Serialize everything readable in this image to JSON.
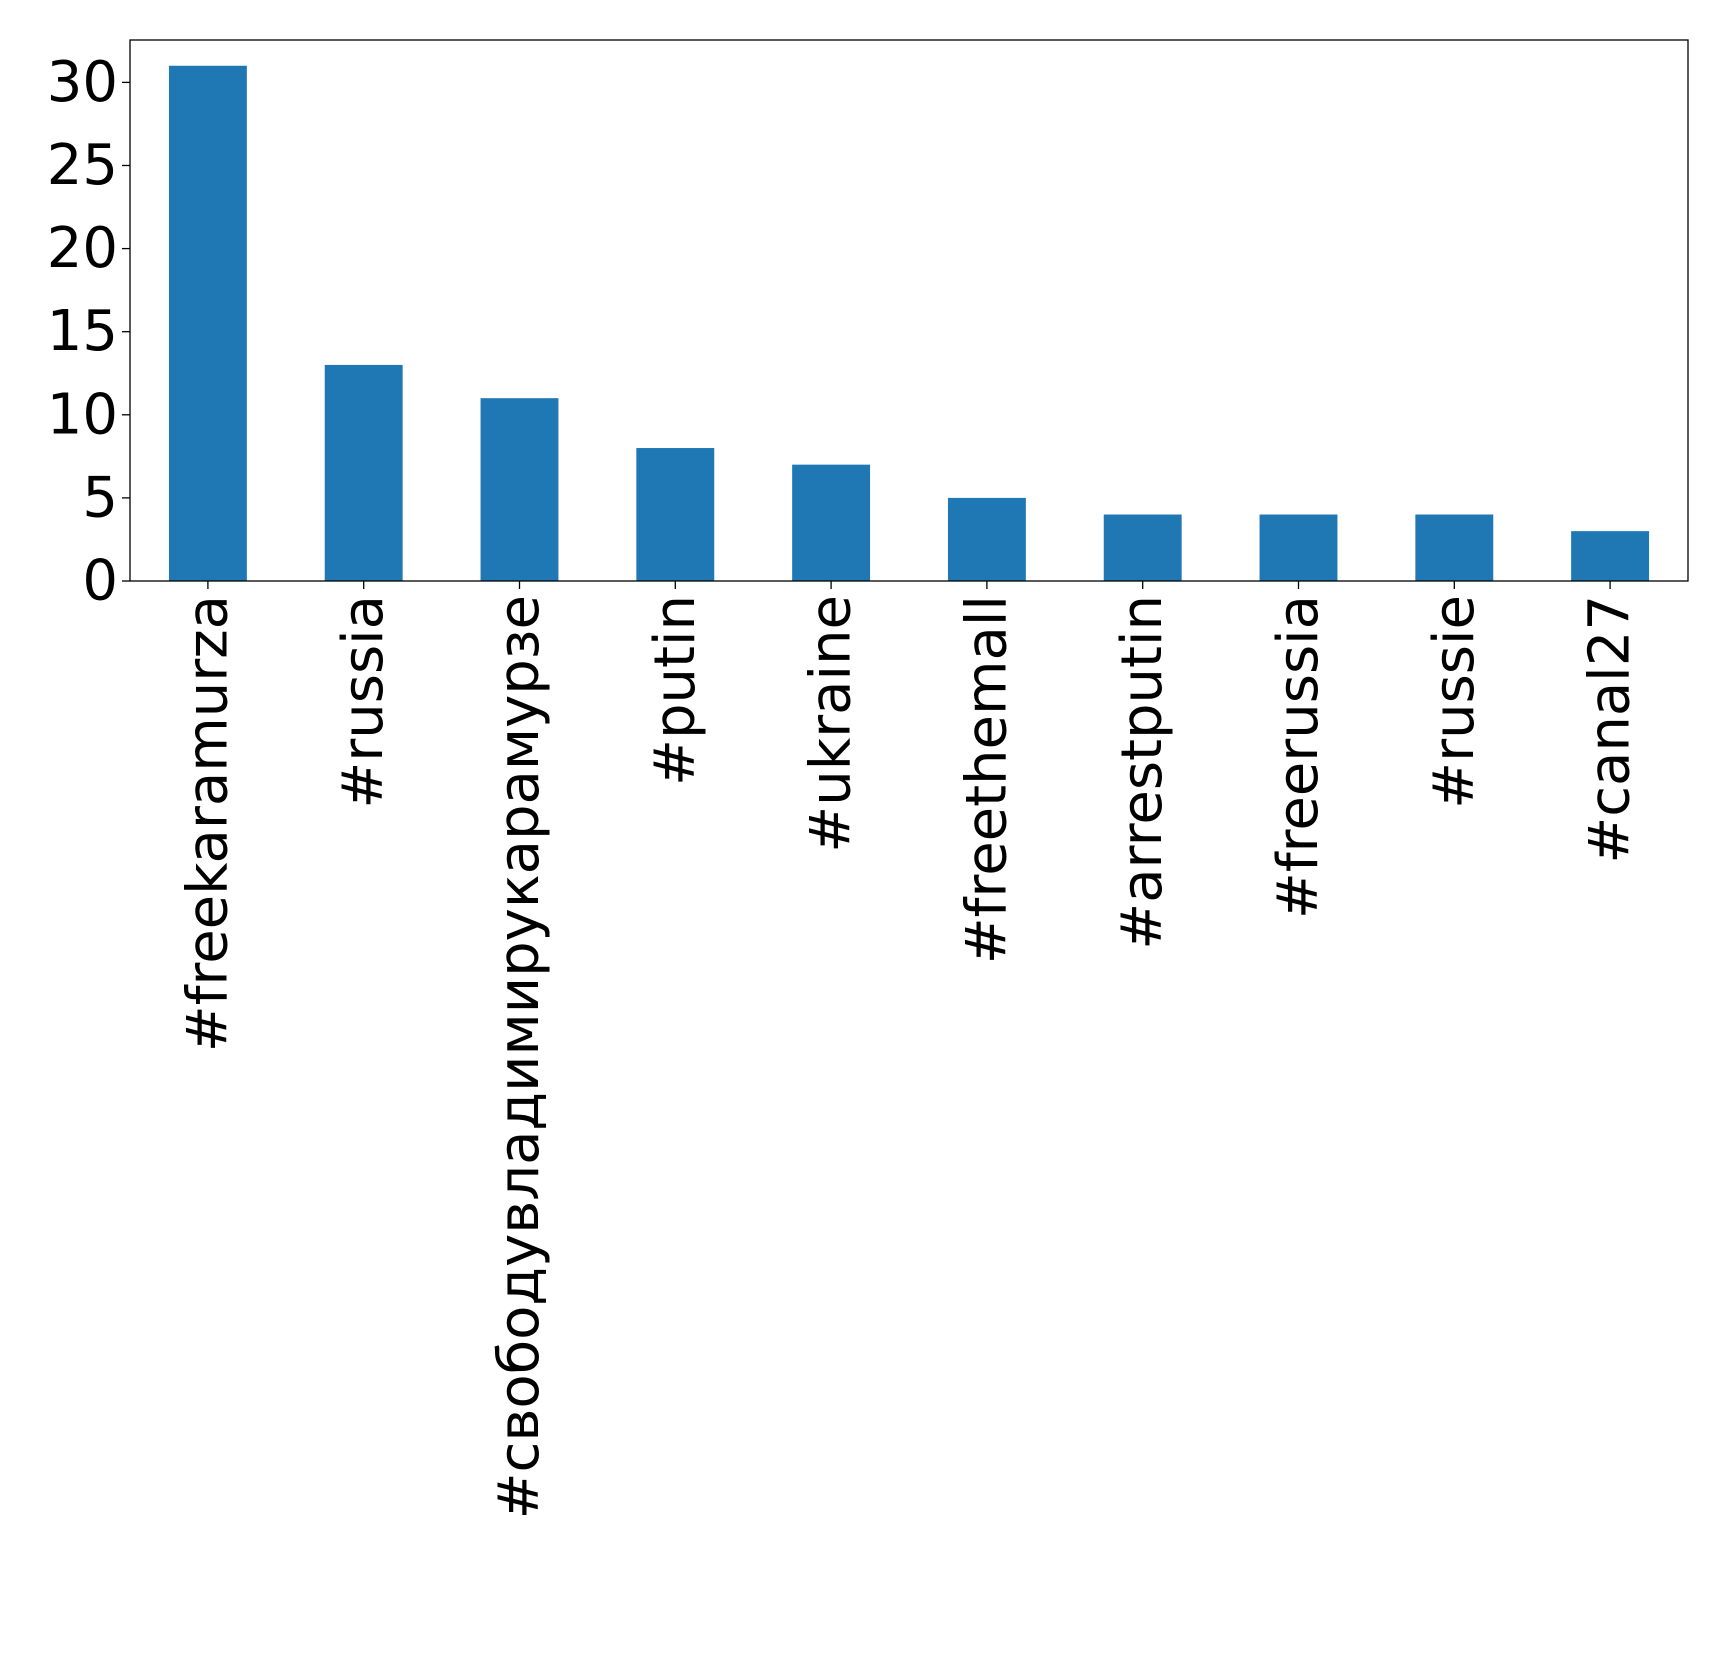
{
  "chart_data": {
    "type": "bar",
    "title": "",
    "xlabel": "",
    "ylabel": "",
    "categories": [
      "#freekaramurza",
      "#russia",
      "#свободувладимирукарамурзе",
      "#putin",
      "#ukraine",
      "#freethemall",
      "#arrestputin",
      "#freerussia",
      "#russie",
      "#canal27"
    ],
    "values": [
      31,
      13,
      11,
      8,
      7,
      5,
      4,
      4,
      4,
      3
    ],
    "ylim": [
      0,
      32.55
    ],
    "yticks": [
      0,
      5,
      10,
      15,
      20,
      25,
      30
    ],
    "grid": false,
    "legend": "none",
    "bar_color": "#1f77b4"
  }
}
